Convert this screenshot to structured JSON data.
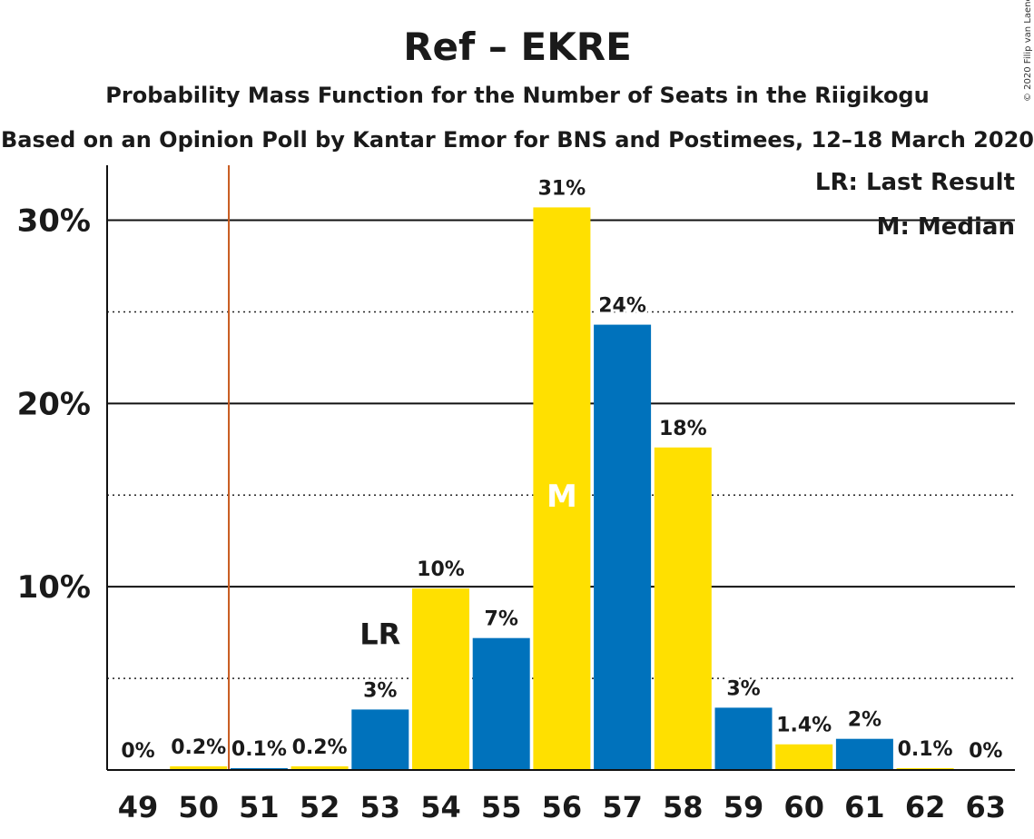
{
  "chart_data": {
    "type": "bar",
    "title": "Ref – EKRE",
    "subtitle": "Probability Mass Function for the Number of Seats in the Riigikogu",
    "subtitle2": "Based on an Opinion Poll by Kantar Emor for BNS and Postimees, 12–18 March 2020",
    "copyright": "© 2020 Filip van Laenen",
    "ylim": [
      0,
      33
    ],
    "yticks": [
      {
        "value": 10,
        "label": "10%"
      },
      {
        "value": 20,
        "label": "20%"
      },
      {
        "value": 30,
        "label": "30%"
      }
    ],
    "minor_gridlines": [
      5,
      15,
      25
    ],
    "categories": [
      "49",
      "50",
      "51",
      "52",
      "53",
      "54",
      "55",
      "56",
      "57",
      "58",
      "59",
      "60",
      "61",
      "62",
      "63"
    ],
    "values": [
      0,
      0.2,
      0.1,
      0.2,
      3.3,
      9.9,
      7.2,
      30.7,
      24.3,
      17.6,
      3.4,
      1.4,
      1.7,
      0.1,
      0
    ],
    "labels": [
      "0%",
      "0.2%",
      "0.1%",
      "0.2%",
      "3%",
      "10%",
      "7%",
      "31%",
      "24%",
      "18%",
      "3%",
      "1.4%",
      "2%",
      "0.1%",
      "0%"
    ],
    "colors": [
      "#FFE000",
      "#FFE000",
      "#0072BC",
      "#FFE000",
      "#0072BC",
      "#FFE000",
      "#0072BC",
      "#FFE000",
      "#0072BC",
      "#FFE000",
      "#0072BC",
      "#FFE000",
      "#0072BC",
      "#FFE000",
      "#0072BC"
    ],
    "threshold_line_after_category": "50",
    "threshold_color": "#C85A1E",
    "last_result": {
      "category": "53",
      "label": "LR"
    },
    "median": {
      "category": "56",
      "label": "M"
    },
    "legend": {
      "placement": "top-right",
      "entries": [
        "LR: Last Result",
        "M: Median"
      ]
    },
    "grid": true
  }
}
